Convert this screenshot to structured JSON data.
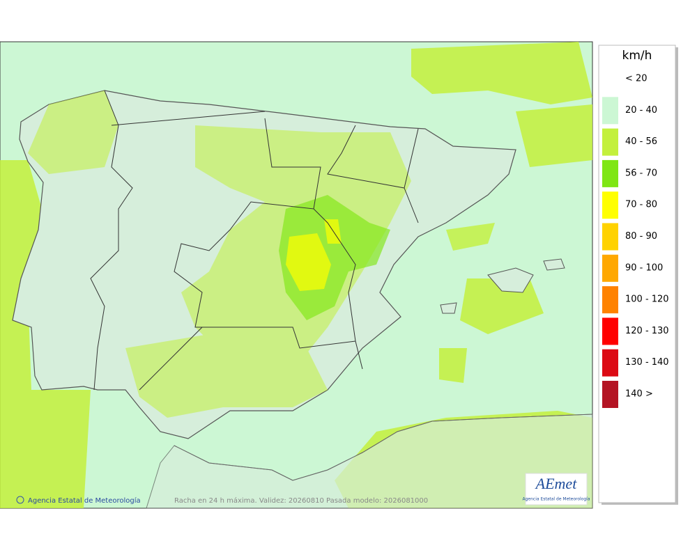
{
  "map": {
    "credit": "Agencia Estatal de Meteorología",
    "caption": "Racha en 24 h máxima. Validez: 20260810 Pasada modelo: 2026081000",
    "logo": {
      "title": "AEmet",
      "subtitle": "Agencia Estatal de Meteorología"
    }
  },
  "legend": {
    "title": "km/h",
    "items": [
      {
        "label": "< 20"
      },
      {
        "label": "20 - 40",
        "color": "#ccf7d4"
      },
      {
        "label": "40 - 56",
        "color": "#c3f03c"
      },
      {
        "label": "56 - 70",
        "color": "#7fe614"
      },
      {
        "label": "70 - 80",
        "color": "#ffff00"
      },
      {
        "label": "80 - 90",
        "color": "#ffd200"
      },
      {
        "label": "90 - 100",
        "color": "#ffa800"
      },
      {
        "label": "100 - 120",
        "color": "#ff8200"
      },
      {
        "label": "120 - 130",
        "color": "#ff0000"
      },
      {
        "label": "130 - 140",
        "color": "#dc0a14"
      },
      {
        "label": "140 >",
        "color": "#b41423"
      }
    ]
  }
}
